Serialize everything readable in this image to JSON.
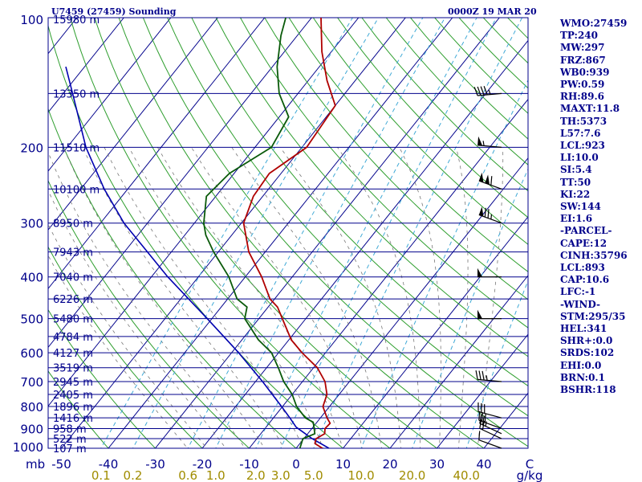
{
  "header": {
    "station": "U7459 (27459) Sounding",
    "time": "0000Z 19 MAR 20"
  },
  "side_panel": [
    "WMO:27459",
    "TP:240",
    "MW:297",
    "FRZ:867",
    "WB0:939",
    "PW:0.59",
    "RH:89.6",
    "MAXT:11.8",
    "TH:5373",
    "L57:7.6",
    "LCL:923",
    "LI:10.0",
    "SI:5.4",
    "TT:50",
    "KI:22",
    "SW:144",
    "EI:1.6",
    "-PARCEL-",
    "CAPE:12",
    "CINH:35796",
    "LCL:893",
    "CAP:10.6",
    "LFC:-1",
    "-WIND-",
    "STM:295/35",
    "HEL:341",
    "SHR+:0.0",
    "SRDS:102",
    "EHI:0.0",
    "BRN:0.1",
    "BSHR:118"
  ],
  "colors": {
    "background": "#ffffff",
    "isobar": "#00008b",
    "isotherm": "#00008b",
    "dry_adiabat": "#2e9e2e",
    "moist_adiabat": "#777777",
    "mixing_ratio": "#3fa9d6",
    "temperature": "#b00000",
    "dewpoint": "#0a5a0a",
    "parcel": "#0000b0",
    "label_dark": "#00008b",
    "label_mix": "#a08c00"
  },
  "chart_data": {
    "type": "skew-t",
    "pressure_levels": [
      100,
      200,
      300,
      400,
      500,
      600,
      700,
      800,
      900,
      1000
    ],
    "pressure_unit_label": "mb",
    "temperature_ticks": [
      -50,
      -40,
      -30,
      -20,
      -10,
      0,
      10,
      20,
      30,
      40,
      50
    ],
    "temperature_tick_labels": [
      "-50",
      "-40",
      "-30",
      "-20",
      "-10",
      "0",
      "10",
      "20",
      "30",
      "40",
      "C"
    ],
    "mixing_ratio_labels": [
      {
        "w": 0.1,
        "label": "0.1"
      },
      {
        "w": 0.2,
        "label": "0.2"
      },
      {
        "w": 0.6,
        "label": "0.6"
      },
      {
        "w": 1.0,
        "label": "1.0"
      },
      {
        "w": 2.0,
        "label": "2.0"
      },
      {
        "w": 3.0,
        "label": "3.0"
      },
      {
        "w": 5.0,
        "label": "5.0"
      },
      {
        "w": 10.0,
        "label": "10.0"
      },
      {
        "w": 20.0,
        "label": "20.0"
      },
      {
        "w": 40.0,
        "label": "40.0"
      }
    ],
    "mixing_ratio_unit": "g/kg",
    "height_labels": [
      {
        "p": 100,
        "label": "15980 m"
      },
      {
        "p": 150,
        "label": "13350 m"
      },
      {
        "p": 200,
        "label": "11510 m"
      },
      {
        "p": 250,
        "label": "10100 m"
      },
      {
        "p": 300,
        "label": "8950 m"
      },
      {
        "p": 350,
        "label": "7943 m"
      },
      {
        "p": 400,
        "label": "7040 m"
      },
      {
        "p": 450,
        "label": "6226 m"
      },
      {
        "p": 500,
        "label": "5480 m"
      },
      {
        "p": 550,
        "label": "4784 m"
      },
      {
        "p": 600,
        "label": "4127 m"
      },
      {
        "p": 650,
        "label": "3519 m"
      },
      {
        "p": 700,
        "label": "2945 m"
      },
      {
        "p": 750,
        "label": "2405 m"
      },
      {
        "p": 800,
        "label": "1896 m"
      },
      {
        "p": 850,
        "label": "1416 m"
      },
      {
        "p": 900,
        "label": "958 m"
      },
      {
        "p": 950,
        "label": "522 m"
      },
      {
        "p": 1000,
        "label": "107 m"
      }
    ],
    "temperature_profile": [
      [
        1000,
        5.6
      ],
      [
        975,
        3.2
      ],
      [
        950,
        2.6
      ],
      [
        925,
        3.6
      ],
      [
        900,
        2.8
      ],
      [
        875,
        3.0
      ],
      [
        850,
        1.4
      ],
      [
        800,
        -1.4
      ],
      [
        750,
        -2.6
      ],
      [
        700,
        -5.2
      ],
      [
        650,
        -9.2
      ],
      [
        600,
        -15.0
      ],
      [
        560,
        -19.5
      ],
      [
        500,
        -25.0
      ],
      [
        470,
        -28.0
      ],
      [
        450,
        -31.0
      ],
      [
        400,
        -36.5
      ],
      [
        350,
        -43.5
      ],
      [
        300,
        -49.5
      ],
      [
        260,
        -52.0
      ],
      [
        230,
        -52.5
      ],
      [
        200,
        -49.0
      ],
      [
        160,
        -50.0
      ],
      [
        140,
        -56.0
      ],
      [
        120,
        -62.0
      ],
      [
        100,
        -68.0
      ]
    ],
    "dewpoint_profile": [
      [
        1000,
        0.8
      ],
      [
        950,
        -0.2
      ],
      [
        925,
        1.5
      ],
      [
        900,
        0.5
      ],
      [
        870,
        -0.8
      ],
      [
        850,
        -3.2
      ],
      [
        800,
        -7.0
      ],
      [
        750,
        -10.0
      ],
      [
        700,
        -14.0
      ],
      [
        650,
        -17.5
      ],
      [
        600,
        -21.5
      ],
      [
        560,
        -26.5
      ],
      [
        500,
        -33.0
      ],
      [
        470,
        -34.5
      ],
      [
        450,
        -38.0
      ],
      [
        400,
        -43.5
      ],
      [
        350,
        -51.0
      ],
      [
        320,
        -55.5
      ],
      [
        300,
        -58.0
      ],
      [
        260,
        -62.0
      ],
      [
        230,
        -61.0
      ],
      [
        200,
        -56.5
      ],
      [
        170,
        -58.0
      ],
      [
        150,
        -64.0
      ],
      [
        130,
        -69.0
      ],
      [
        110,
        -73.5
      ],
      [
        100,
        -75.5
      ]
    ],
    "parcel_profile": [
      [
        1000,
        7.0
      ],
      [
        950,
        1.8
      ],
      [
        893,
        -3.6
      ],
      [
        850,
        -6.5
      ],
      [
        800,
        -10.2
      ],
      [
        700,
        -18.5
      ],
      [
        600,
        -28.5
      ],
      [
        500,
        -41.0
      ],
      [
        400,
        -56.5
      ],
      [
        300,
        -75.0
      ],
      [
        250,
        -85.0
      ],
      [
        200,
        -96.0
      ],
      [
        150,
        -108.0
      ],
      [
        130,
        -114.0
      ]
    ],
    "wind_barbs": [
      {
        "p": 1000,
        "dir": 290,
        "spd": 10
      },
      {
        "p": 950,
        "dir": 295,
        "spd": 20
      },
      {
        "p": 925,
        "dir": 295,
        "spd": 25
      },
      {
        "p": 900,
        "dir": 290,
        "spd": 30
      },
      {
        "p": 850,
        "dir": 285,
        "spd": 30
      },
      {
        "p": 700,
        "dir": 275,
        "spd": 35
      },
      {
        "p": 500,
        "dir": 270,
        "spd": 50
      },
      {
        "p": 400,
        "dir": 270,
        "spd": 50
      },
      {
        "p": 300,
        "dir": 290,
        "spd": 75
      },
      {
        "p": 250,
        "dir": 290,
        "spd": 110
      },
      {
        "p": 200,
        "dir": 275,
        "spd": 55
      },
      {
        "p": 150,
        "dir": 265,
        "spd": 45
      }
    ]
  }
}
